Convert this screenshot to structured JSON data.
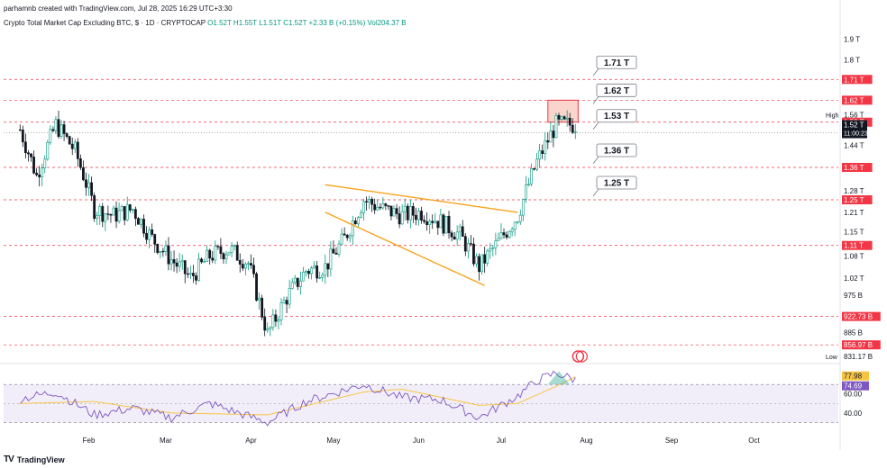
{
  "header": {
    "created_by": "parhamnb created with TradingView.com, Jul 28, 2025 16:29 UTC+3:30",
    "symbol_title": "Crypto Total Market Cap Excluding BTC, $ · 1D · CRYPTOCAP",
    "ohlc": "O1.52T H1.55T L1.51T C1.52T +2.33 B (+0.15%) Vol204.37 B"
  },
  "footer": {
    "brand": "TradingView",
    "logo": "TV"
  },
  "colors": {
    "up": "#089981",
    "down": "#131722",
    "red_level": "#f23645",
    "orange": "#f7a21b",
    "rsi_line": "#7e57c2",
    "rsi_ma": "#f5c542",
    "zone_fill": "#f9d5cc"
  },
  "chart_data": [
    {
      "type": "candlestick",
      "title": "Crypto Total Market Cap Excluding BTC, $ · 1D · CRYPTOCAP",
      "y_axis": {
        "ticks": [
          "1.9 T",
          "1.8 T",
          "1.56 T",
          "1.44 T",
          "1.28 T",
          "1.21 T",
          "1.15 T",
          "1.08 T",
          "1.02 T",
          "975 B",
          "885 B",
          "831.17 B"
        ],
        "scale": "log",
        "range": [
          0.82,
          1.96
        ]
      },
      "x_axis": {
        "ticks": [
          "Feb",
          "Mar",
          "Apr",
          "May",
          "Jun",
          "Jul",
          "Aug",
          "Sep",
          "Oct"
        ]
      },
      "close_path": [
        [
          "2025-01-07",
          1.5
        ],
        [
          "2025-01-13",
          1.33
        ],
        [
          "2025-01-20",
          1.52
        ],
        [
          "2025-01-27",
          1.42
        ],
        [
          "2025-02-03",
          1.22
        ],
        [
          "2025-02-10",
          1.2
        ],
        [
          "2025-02-17",
          1.22
        ],
        [
          "2025-02-24",
          1.13
        ],
        [
          "2025-03-03",
          1.07
        ],
        [
          "2025-03-10",
          1.02
        ],
        [
          "2025-03-17",
          1.08
        ],
        [
          "2025-03-24",
          1.1
        ],
        [
          "2025-03-31",
          1.06
        ],
        [
          "2025-04-07",
          0.88
        ],
        [
          "2025-04-14",
          0.97
        ],
        [
          "2025-04-21",
          1.04
        ],
        [
          "2025-04-28",
          1.05
        ],
        [
          "2025-05-05",
          1.13
        ],
        [
          "2025-05-12",
          1.25
        ],
        [
          "2025-05-19",
          1.22
        ],
        [
          "2025-05-26",
          1.2
        ],
        [
          "2025-06-02",
          1.21
        ],
        [
          "2025-06-09",
          1.18
        ],
        [
          "2025-06-16",
          1.14
        ],
        [
          "2025-06-23",
          1.05
        ],
        [
          "2025-06-30",
          1.12
        ],
        [
          "2025-07-07",
          1.2
        ],
        [
          "2025-07-14",
          1.38
        ],
        [
          "2025-07-21",
          1.52
        ],
        [
          "2025-07-28",
          1.52
        ]
      ],
      "last_price": {
        "value": "1.52 T",
        "countdown": "11:00:23"
      },
      "levels": [
        {
          "label": "1.71 T",
          "value": 1.71,
          "callout": "1.71 T"
        },
        {
          "label": "1.62 T",
          "value": 1.62,
          "callout": "1.62 T"
        },
        {
          "label": "1.53 T",
          "value": 1.53,
          "callout": "1.53 T"
        },
        {
          "label": "1.36 T",
          "value": 1.36,
          "callout": "1.36 T"
        },
        {
          "label": "1.25 T",
          "value": 1.25,
          "callout": "1.25 T"
        },
        {
          "label": "1.11 T",
          "value": 1.11,
          "callout": ""
        },
        {
          "label": "922.73 B",
          "value": 0.92273,
          "callout": ""
        },
        {
          "label": "856.97 B",
          "value": 0.85697,
          "callout": ""
        }
      ],
      "high_marker": {
        "label": "High",
        "value": 1.56
      },
      "low_marker": {
        "label": "Low",
        "value": "831.17 B"
      },
      "supply_zone": {
        "from": 1.53,
        "to": 1.62,
        "start": "2025-07-18",
        "end": "2025-07-29"
      },
      "falling_wedge": {
        "upper": [
          [
            "2025-04-28",
            1.3
          ],
          [
            "2025-07-07",
            1.21
          ]
        ],
        "lower": [
          [
            "2025-04-28",
            1.21
          ],
          [
            "2025-06-25",
            1.0
          ]
        ]
      }
    },
    {
      "type": "line",
      "title": "RSI",
      "y_axis": {
        "ticks": [
          "60.00",
          "40.00"
        ],
        "range": [
          20,
          90
        ],
        "bands": [
          30,
          70
        ]
      },
      "series": [
        {
          "values": [
            [
              "2025-01-07",
              55
            ],
            [
              "2025-01-20",
              62
            ],
            [
              "2025-02-03",
              38
            ],
            [
              "2025-02-17",
              45
            ],
            [
              "2025-03-03",
              35
            ],
            [
              "2025-03-17",
              50
            ],
            [
              "2025-04-07",
              30
            ],
            [
              "2025-04-21",
              52
            ],
            [
              "2025-05-12",
              70
            ],
            [
              "2025-05-26",
              56
            ],
            [
              "2025-06-09",
              54
            ],
            [
              "2025-06-23",
              35
            ],
            [
              "2025-07-07",
              58
            ],
            [
              "2025-07-14",
              74
            ],
            [
              "2025-07-21",
              82
            ],
            [
              "2025-07-28",
              74.69
            ]
          ],
          "last_label": "74.69"
        },
        {
          "values": [
            [
              "2025-01-07",
              50
            ],
            [
              "2025-02-03",
              52
            ],
            [
              "2025-03-03",
              40
            ],
            [
              "2025-04-07",
              38
            ],
            [
              "2025-05-12",
              62
            ],
            [
              "2025-05-26",
              65
            ],
            [
              "2025-06-23",
              48
            ],
            [
              "2025-07-07",
              50
            ],
            [
              "2025-07-21",
              68
            ],
            [
              "2025-07-28",
              77.98
            ]
          ],
          "last_label": "77.98"
        }
      ]
    }
  ]
}
